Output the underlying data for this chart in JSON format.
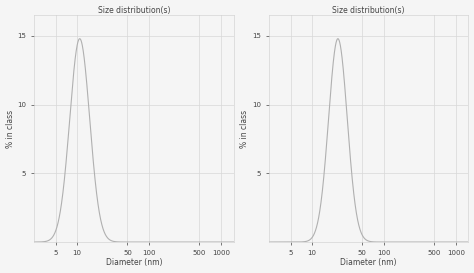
{
  "title": "Size distribution(s)",
  "xlabel": "Diameter (nm)",
  "ylabel": "% in class",
  "background_color": "#f5f5f5",
  "grid_color": "#d8d8d8",
  "line_color": "#b0b0b0",
  "plot1": {
    "peak": 12,
    "sigma": 0.32,
    "peak_value": 14.8
  },
  "plot2": {
    "peak": 25,
    "sigma": 0.3,
    "peak_value": 14.8
  },
  "xlim_log": [
    2.5,
    1500
  ],
  "xticks": [
    5,
    10,
    50,
    100,
    500,
    1000
  ],
  "yticks": [
    5,
    10,
    15
  ],
  "ylim": [
    0,
    16.5
  ],
  "title_fontsize": 5.5,
  "label_fontsize": 5.5,
  "tick_fontsize": 5.0
}
